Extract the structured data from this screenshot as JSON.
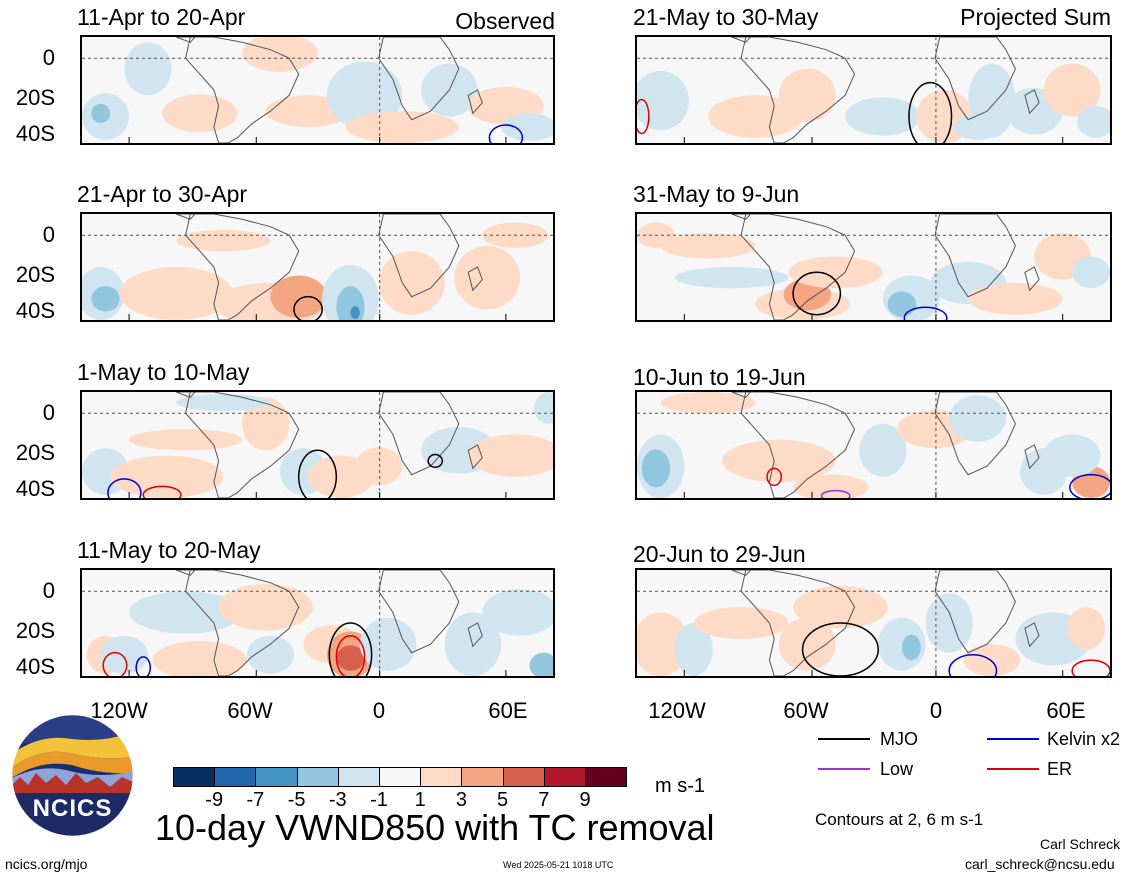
{
  "chart_data": {
    "type": "heatmap",
    "variable": "10-day VWND850 with TC removal",
    "units": "m s-1",
    "colorbar": {
      "ticks": [
        "-9",
        "-7",
        "-5",
        "-3",
        "-1",
        "1",
        "3",
        "5",
        "7",
        "9"
      ],
      "colors": [
        "#053061",
        "#2166ac",
        "#4393c3",
        "#92c5de",
        "#d1e5f0",
        "#f7f7f7",
        "#fddbc7",
        "#f4a582",
        "#d6604d",
        "#b2182b",
        "#67001f"
      ]
    },
    "contour_note": "Contours at 2, 6 m s-1",
    "legend": [
      {
        "label": "MJO",
        "color": "#000000"
      },
      {
        "label": "Kelvin x2",
        "color": "#0000cc"
      },
      {
        "label": "Low",
        "color": "#9933cc"
      },
      {
        "label": "ER",
        "color": "#dd0000"
      }
    ],
    "x_ticks": [
      "120W",
      "60W",
      "0",
      "60E"
    ],
    "y_ticks": [
      "0",
      "20S",
      "40S"
    ],
    "panels": [
      {
        "label": "11-Apr to 20-Apr",
        "tag": "Observed"
      },
      {
        "label": "21-Apr to 30-Apr",
        "tag": ""
      },
      {
        "label": "1-May to 10-May",
        "tag": ""
      },
      {
        "label": "11-May to 20-May",
        "tag": ""
      },
      {
        "label": "21-May to 30-May",
        "tag": "Projected Sum"
      },
      {
        "label": "31-May to 9-Jun",
        "tag": ""
      },
      {
        "label": "10-Jun to 19-Jun",
        "tag": ""
      },
      {
        "label": "20-Jun to 29-Jun",
        "tag": ""
      }
    ]
  },
  "footer": {
    "logo_text": "NCICS",
    "site": "ncics.org/mjo",
    "timestamp": "Wed 2025-05-21 1018 UTC",
    "author": "Carl Schreck",
    "email": "carl_schreck@ncsu.edu"
  }
}
